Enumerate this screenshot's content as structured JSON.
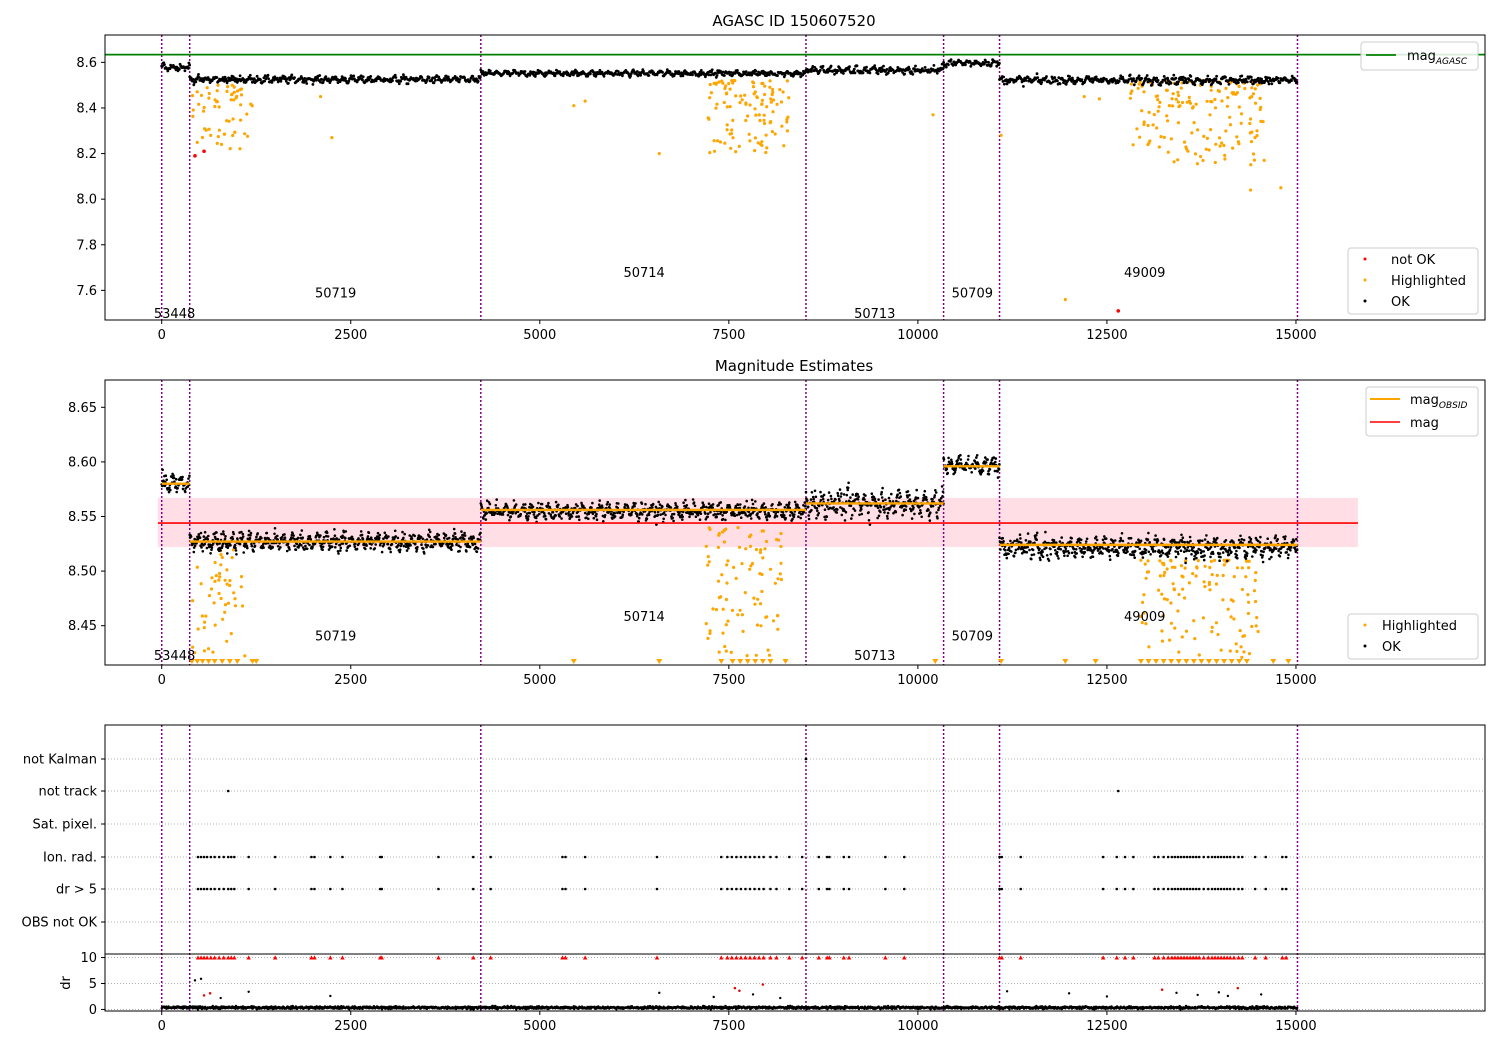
{
  "chart_data": [
    {
      "type": "scatter",
      "title": "AGASC ID 150607520",
      "xlabel": "",
      "ylabel": "",
      "xlim": [
        -750,
        17500
      ],
      "ylim": [
        7.47,
        8.72
      ],
      "yticks": [
        "8.6",
        "8.4",
        "8.2",
        "8.0",
        "7.8",
        "7.6"
      ],
      "ytick_values": [
        8.6,
        8.4,
        8.2,
        8.0,
        7.8,
        7.6
      ],
      "xticks": [
        "0",
        "2500",
        "5000",
        "7500",
        "10000",
        "12500",
        "15000"
      ],
      "xtick_values": [
        0,
        2500,
        5000,
        7500,
        10000,
        12500,
        15000
      ],
      "vlines": [
        0,
        370,
        4220,
        8520,
        10340,
        11080,
        15020
      ],
      "agasc_mag": 8.634,
      "legend_top": {
        "position": "top-right",
        "entry": "mag",
        "entry_sub": "AGASC",
        "color": "#008000"
      },
      "legend_bottom": {
        "position": "bottom-right",
        "entries": [
          {
            "label": "not OK",
            "color": "#ff0000"
          },
          {
            "label": "Highlighted",
            "color": "#ffa500"
          },
          {
            "label": "OK",
            "color": "#000000"
          }
        ]
      },
      "obsid_labels": [
        {
          "text": "53448",
          "x": 170,
          "y": 7.5
        },
        {
          "text": "50719",
          "x": 2300,
          "y": 7.59
        },
        {
          "text": "50714",
          "x": 6380,
          "y": 7.68
        },
        {
          "text": "50713",
          "x": 9430,
          "y": 7.5
        },
        {
          "text": "50709",
          "x": 10720,
          "y": 7.59
        },
        {
          "text": "49009",
          "x": 13000,
          "y": 7.68
        }
      ],
      "segments": [
        {
          "x0": 0,
          "x1": 370,
          "mag": 8.58,
          "noise": 0.012
        },
        {
          "x0": 370,
          "x1": 4220,
          "mag": 8.525,
          "noise": 0.012
        },
        {
          "x0": 4220,
          "x1": 8520,
          "mag": 8.552,
          "noise": 0.01
        },
        {
          "x0": 8520,
          "x1": 10340,
          "mag": 8.565,
          "noise": 0.014
        },
        {
          "x0": 10340,
          "x1": 11080,
          "mag": 8.598,
          "noise": 0.012
        },
        {
          "x0": 11080,
          "x1": 15020,
          "mag": 8.522,
          "noise": 0.014
        }
      ],
      "highlighted_clusters": [
        {
          "x0": 400,
          "x1": 1200,
          "ymin": 8.22,
          "ymax": 8.5,
          "count": 60
        },
        {
          "x0": 7200,
          "x1": 8300,
          "ymin": 8.2,
          "ymax": 8.52,
          "count": 110
        },
        {
          "x0": 12800,
          "x1": 14600,
          "ymin": 8.15,
          "ymax": 8.52,
          "count": 170
        }
      ],
      "highlighted_points": [
        {
          "x": 2100,
          "y": 8.45
        },
        {
          "x": 2250,
          "y": 8.27
        },
        {
          "x": 6580,
          "y": 8.2
        },
        {
          "x": 5450,
          "y": 8.41
        },
        {
          "x": 5600,
          "y": 8.43
        },
        {
          "x": 10200,
          "y": 8.37
        },
        {
          "x": 14400,
          "y": 8.04
        },
        {
          "x": 14800,
          "y": 8.05
        },
        {
          "x": 11950,
          "y": 7.56
        },
        {
          "x": 11100,
          "y": 8.28
        },
        {
          "x": 12200,
          "y": 8.45
        },
        {
          "x": 12400,
          "y": 8.44
        }
      ],
      "notok_points": [
        {
          "x": 440,
          "y": 8.19
        },
        {
          "x": 560,
          "y": 8.21
        },
        {
          "x": 12650,
          "y": 7.51
        }
      ]
    },
    {
      "type": "scatter",
      "title": "Magnitude Estimates",
      "xlabel": "",
      "ylabel": "",
      "xlim": [
        -750,
        17500
      ],
      "ylim": [
        8.414,
        8.675
      ],
      "yticks": [
        "8.65",
        "8.60",
        "8.55",
        "8.50",
        "8.45"
      ],
      "ytick_values": [
        8.65,
        8.6,
        8.55,
        8.5,
        8.45
      ],
      "xticks": [
        "0",
        "2500",
        "5000",
        "7500",
        "10000",
        "12500",
        "15000"
      ],
      "xtick_values": [
        0,
        2500,
        5000,
        7500,
        10000,
        12500,
        15000
      ],
      "vlines": [
        0,
        370,
        4220,
        8520,
        10340,
        11080,
        15020
      ],
      "mean_mag": 8.544,
      "band": [
        8.522,
        8.567
      ],
      "band_x": [
        -50,
        15820
      ],
      "legend_top": {
        "position": "top-right",
        "entries": [
          {
            "label": "mag",
            "sub": "OBSID",
            "color": "#ffa500"
          },
          {
            "label": "mag",
            "sub": "",
            "color": "#ff0000"
          }
        ]
      },
      "legend_bottom": {
        "position": "bottom-right",
        "entries": [
          {
            "label": "Highlighted",
            "color": "#ffa500"
          },
          {
            "label": "OK",
            "color": "#000000"
          }
        ]
      },
      "obsid_labels": [
        {
          "text": "53448",
          "x": 170,
          "y": 8.423
        },
        {
          "text": "50719",
          "x": 2300,
          "y": 8.441
        },
        {
          "text": "50714",
          "x": 6380,
          "y": 8.459
        },
        {
          "text": "50713",
          "x": 9430,
          "y": 8.423
        },
        {
          "text": "50709",
          "x": 10720,
          "y": 8.441
        },
        {
          "text": "49009",
          "x": 13000,
          "y": 8.459
        }
      ],
      "obsid_mag": [
        {
          "x0": 0,
          "x1": 370,
          "mag": 8.58
        },
        {
          "x0": 370,
          "x1": 4220,
          "mag": 8.527
        },
        {
          "x0": 4220,
          "x1": 8520,
          "mag": 8.556
        },
        {
          "x0": 8520,
          "x1": 10340,
          "mag": 8.562
        },
        {
          "x0": 10340,
          "x1": 11080,
          "mag": 8.596
        },
        {
          "x0": 11080,
          "x1": 15020,
          "mag": 8.524
        }
      ],
      "segments": [
        {
          "x0": 0,
          "x1": 370,
          "mag": 8.58,
          "noise": 0.007
        },
        {
          "x0": 370,
          "x1": 4220,
          "mag": 8.527,
          "noise": 0.007
        },
        {
          "x0": 4220,
          "x1": 8520,
          "mag": 8.555,
          "noise": 0.006
        },
        {
          "x0": 8520,
          "x1": 10340,
          "mag": 8.562,
          "noise": 0.01
        },
        {
          "x0": 10340,
          "x1": 11080,
          "mag": 8.597,
          "noise": 0.007
        },
        {
          "x0": 11080,
          "x1": 15020,
          "mag": 8.522,
          "noise": 0.008
        }
      ],
      "highlighted_clusters": [
        {
          "x0": 400,
          "x1": 1100,
          "ymin": 8.42,
          "ymax": 8.52,
          "count": 50
        },
        {
          "x0": 7200,
          "x1": 8200,
          "ymin": 8.42,
          "ymax": 8.54,
          "count": 90
        },
        {
          "x0": 12900,
          "x1": 14500,
          "ymin": 8.42,
          "ymax": 8.51,
          "count": 120
        }
      ],
      "clipped_x": [
        400,
        470,
        540,
        620,
        700,
        800,
        900,
        1000,
        1200,
        1250,
        5450,
        6580,
        7400,
        7550,
        7650,
        7750,
        7850,
        7950,
        8050,
        8250,
        10230,
        11100,
        11950,
        12350,
        12950,
        13050,
        13150,
        13250,
        13350,
        13450,
        13550,
        13650,
        13750,
        13850,
        13950,
        14050,
        14150,
        14250,
        14350,
        14700,
        14900
      ]
    },
    {
      "type": "scatter",
      "title": "",
      "xlabel": "",
      "ylabel": "dr",
      "xlim": [
        -750,
        17500
      ],
      "flag_labels": [
        "not Kalman",
        "not track",
        "Sat. pixel.",
        "Ion. rad.",
        "dr > 5",
        "OBS not OK"
      ],
      "dr_ylim": [
        -0.3,
        10.3
      ],
      "dr_yticks": [
        "10",
        "5",
        "0"
      ],
      "dr_ytick_values": [
        10,
        5,
        0
      ],
      "xticks": [
        "0",
        "2500",
        "5000",
        "7500",
        "10000",
        "12500",
        "15000"
      ],
      "xtick_values": [
        0,
        2500,
        5000,
        7500,
        10000,
        12500,
        15000
      ],
      "vlines": [
        0,
        370,
        4220,
        8520,
        10340,
        11080,
        15020
      ],
      "not_kalman_x": [
        8520
      ],
      "not_track_x": [
        880,
        12650
      ],
      "flag_x": [
        480,
        520,
        560,
        600,
        650,
        700,
        760,
        820,
        880,
        920,
        960,
        1150,
        1500,
        1980,
        2020,
        2230,
        2390,
        2890,
        2910,
        3660,
        4120,
        4350,
        5300,
        5340,
        5600,
        6550,
        7400,
        7480,
        7540,
        7600,
        7660,
        7720,
        7780,
        7840,
        7900,
        7960,
        8050,
        8130,
        8300,
        8470,
        8690,
        8800,
        8830,
        9020,
        9090,
        9570,
        9820,
        11080,
        11110,
        11360,
        12450,
        12630,
        12740,
        12850,
        13130,
        13180,
        13250,
        13310,
        13360,
        13400,
        13440,
        13480,
        13520,
        13560,
        13600,
        13640,
        13680,
        13720,
        13780,
        13840,
        13890,
        13930,
        13970,
        14010,
        14050,
        14090,
        14130,
        14180,
        14240,
        14290,
        14460,
        14600,
        14820,
        14870
      ],
      "dr_outliers": [
        {
          "x": 440,
          "y": 5.6
        },
        {
          "x": 520,
          "y": 5.9
        },
        {
          "x": 560,
          "y": 2.7
        },
        {
          "x": 640,
          "y": 3.1
        },
        {
          "x": 780,
          "y": 2.2
        },
        {
          "x": 1150,
          "y": 3.4
        },
        {
          "x": 2230,
          "y": 2.6
        },
        {
          "x": 6580,
          "y": 3.2
        },
        {
          "x": 7300,
          "y": 2.4
        },
        {
          "x": 7580,
          "y": 4.1
        },
        {
          "x": 7640,
          "y": 3.6
        },
        {
          "x": 7820,
          "y": 2.9
        },
        {
          "x": 7950,
          "y": 4.8
        },
        {
          "x": 8180,
          "y": 2.2
        },
        {
          "x": 11180,
          "y": 3.5
        },
        {
          "x": 12000,
          "y": 3.1
        },
        {
          "x": 12500,
          "y": 2.5
        },
        {
          "x": 13230,
          "y": 3.8
        },
        {
          "x": 13420,
          "y": 3.2
        },
        {
          "x": 13700,
          "y": 2.8
        },
        {
          "x": 13980,
          "y": 3.3
        },
        {
          "x": 14100,
          "y": 2.6
        },
        {
          "x": 14230,
          "y": 4.1
        },
        {
          "x": 14540,
          "y": 2.9
        }
      ]
    }
  ]
}
